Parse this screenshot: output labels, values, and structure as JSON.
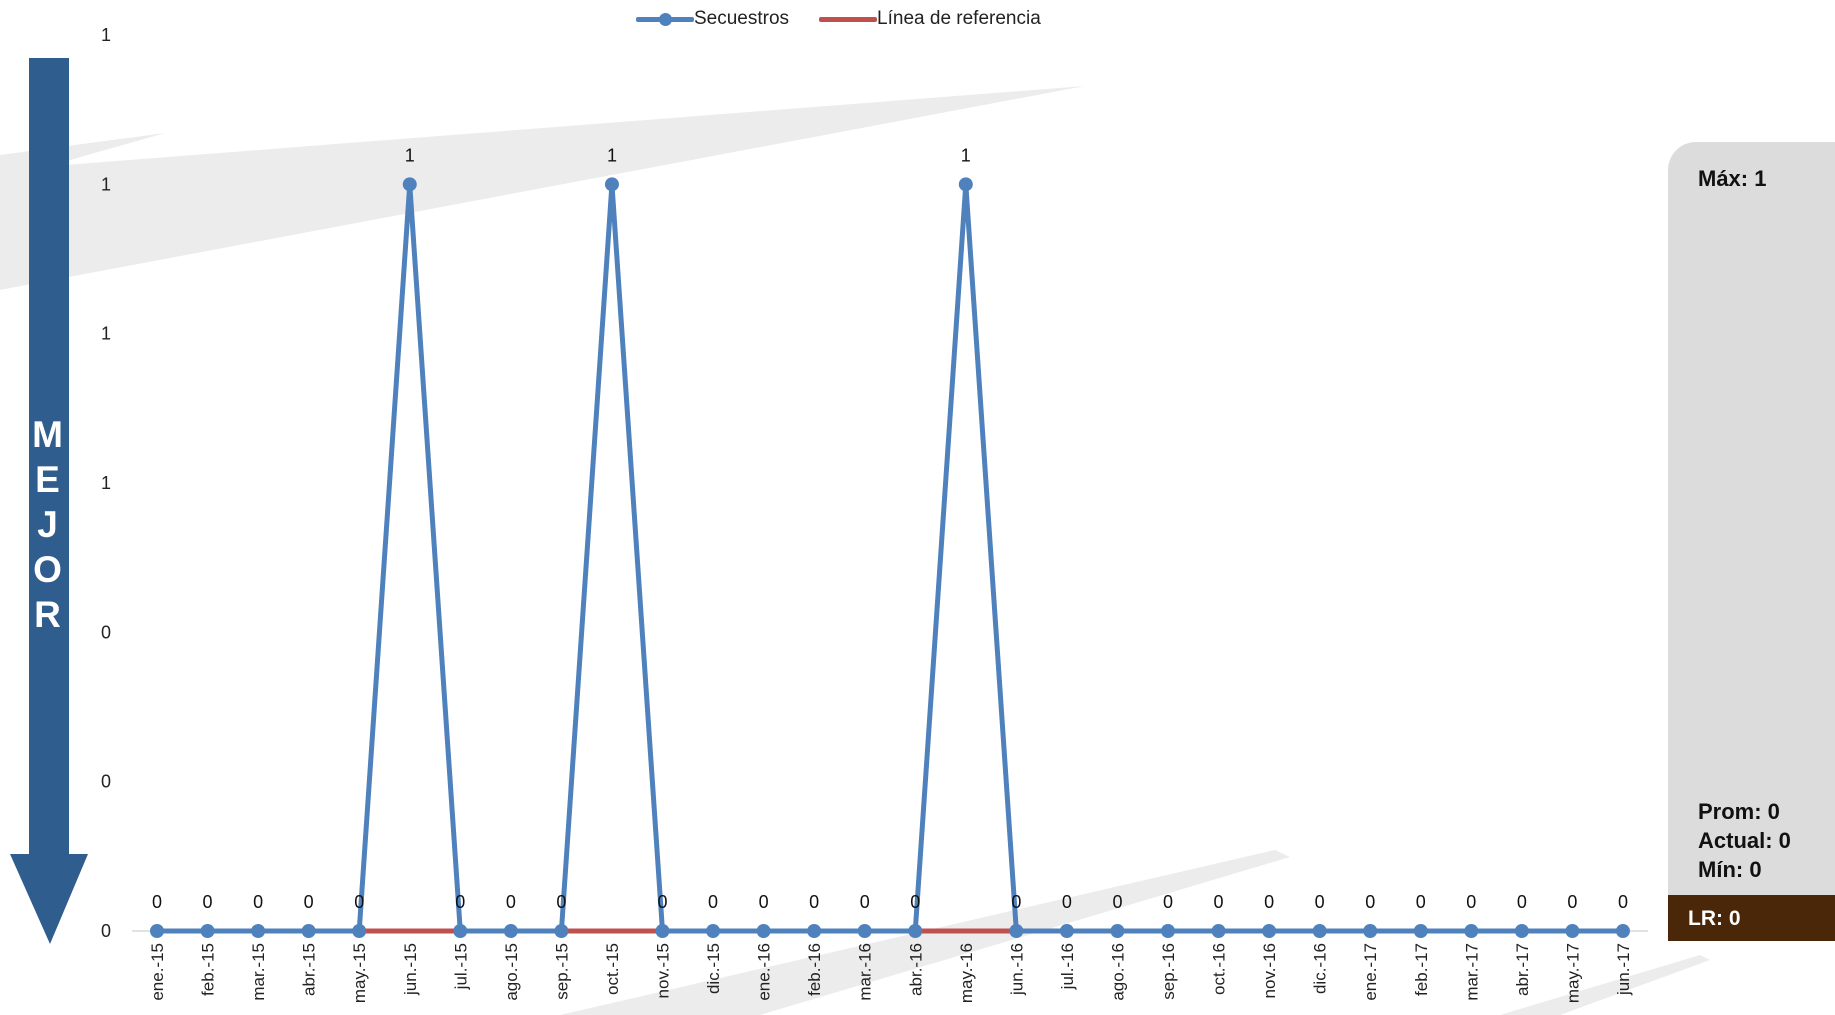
{
  "legend": {
    "series_label": "Secuestros",
    "reference_label": "Línea de referencia"
  },
  "side_label": "MEJOR",
  "stats": {
    "max": "Máx: 1",
    "avg": "Prom: 0",
    "current": "Actual: 0",
    "min": "Mín: 0",
    "lr": "LR: 0"
  },
  "colors": {
    "series": "#4f81bd",
    "reference": "#c0504d",
    "arrow": "#2f5d8e",
    "stats_panel": "#dcdcdc",
    "lr_box": "#4a2708"
  },
  "chart_data": {
    "type": "line",
    "title": "",
    "xlabel": "",
    "ylabel": "",
    "ylim": [
      0,
      1.2
    ],
    "yticks": [
      0,
      0.2,
      0.4,
      0.6,
      0.8,
      1.0,
      1.2
    ],
    "ytick_labels": [
      "0",
      "0",
      "0",
      "1",
      "1",
      "1",
      "1"
    ],
    "grid": false,
    "legend_position": "top-center",
    "categories": [
      "ene.-15",
      "feb.-15",
      "mar.-15",
      "abr.-15",
      "may.-15",
      "jun.-15",
      "jul.-15",
      "ago.-15",
      "sep.-15",
      "oct.-15",
      "nov.-15",
      "dic.-15",
      "ene.-16",
      "feb.-16",
      "mar.-16",
      "abr.-16",
      "may.-16",
      "jun.-16",
      "jul.-16",
      "ago.-16",
      "sep.-16",
      "oct.-16",
      "nov.-16",
      "dic.-16",
      "ene.-17",
      "feb.-17",
      "mar.-17",
      "abr.-17",
      "may.-17",
      "jun.-17"
    ],
    "series": [
      {
        "name": "Secuestros",
        "values": [
          0,
          0,
          0,
          0,
          0,
          1,
          0,
          0,
          0,
          1,
          0,
          0,
          0,
          0,
          0,
          0,
          1,
          0,
          0,
          0,
          0,
          0,
          0,
          0,
          0,
          0,
          0,
          0,
          0,
          0
        ],
        "data_labels": [
          "0",
          "0",
          "0",
          "0",
          "0",
          "1",
          "0",
          "0",
          "0",
          "1",
          "0",
          "0",
          "0",
          "0",
          "0",
          "0",
          "1",
          "0",
          "0",
          "0",
          "0",
          "0",
          "0",
          "0",
          "0",
          "0",
          "0",
          "0",
          "0",
          "0"
        ]
      },
      {
        "name": "Línea de referencia",
        "values": [
          0,
          0,
          0,
          0,
          0,
          0,
          0,
          0,
          0,
          0,
          0,
          0,
          0,
          0,
          0,
          0,
          0,
          0,
          0,
          0,
          0,
          0,
          0,
          0,
          0,
          0,
          0,
          0,
          0,
          0
        ]
      }
    ]
  }
}
